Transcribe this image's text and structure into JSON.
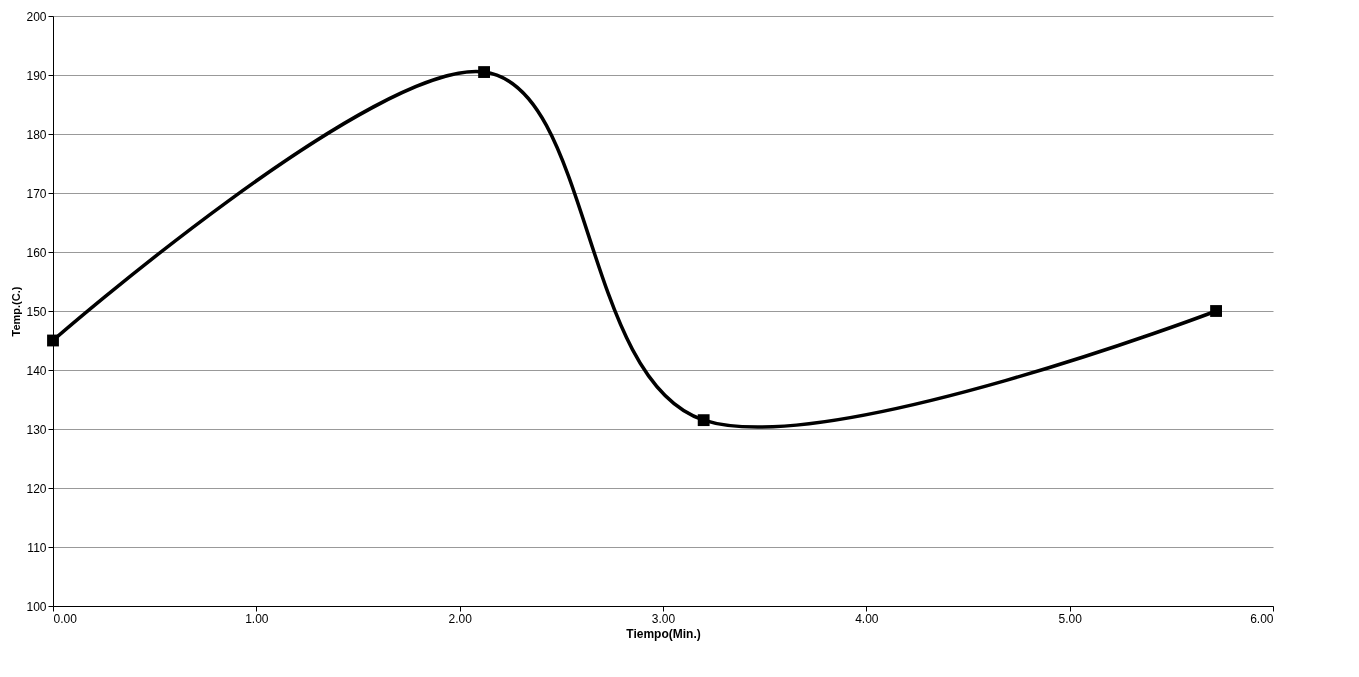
{
  "chart_data": {
    "type": "line",
    "xlabel": "Tiempo(Min.)",
    "ylabel": "Temp.(C.)",
    "x": [
      0,
      2.12,
      3.2,
      5.72
    ],
    "series": [
      {
        "color": "#000000",
        "values": [
          145,
          190.5,
          131.5,
          150
        ]
      }
    ],
    "xlim": [
      0,
      6
    ],
    "xticks": [
      {
        "value": 0,
        "label": "0.00"
      },
      {
        "value": 1,
        "label": "1.00"
      },
      {
        "value": 2,
        "label": "2.00"
      },
      {
        "value": 3,
        "label": "3.00"
      },
      {
        "value": 4,
        "label": "4.00"
      },
      {
        "value": 5,
        "label": "5.00"
      },
      {
        "value": 6,
        "label": "6.00"
      }
    ],
    "ylim": [
      100,
      200
    ],
    "yticks": [
      100,
      110,
      120,
      130,
      140,
      150,
      160,
      170,
      180,
      190,
      200
    ],
    "grid": "y",
    "marker": "square",
    "line_style": "solid"
  }
}
